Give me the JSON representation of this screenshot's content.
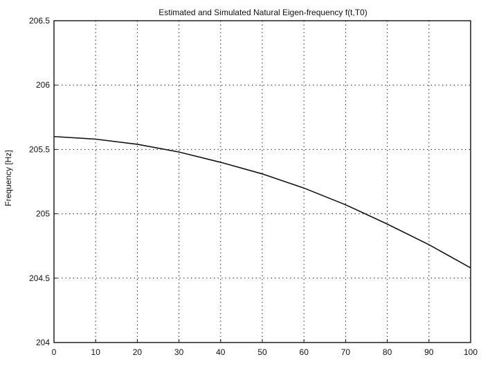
{
  "chart_data": {
    "type": "line",
    "title": "Estimated and Simulated Natural Eigen-frequency f(t,T0)",
    "xlabel": "",
    "ylabel": "Frequency [Hz]",
    "xlim": [
      0,
      100
    ],
    "ylim": [
      204,
      206.5
    ],
    "grid": true,
    "x_ticks": [
      0,
      10,
      20,
      30,
      40,
      50,
      60,
      70,
      80,
      90,
      100
    ],
    "y_ticks": [
      204,
      204.5,
      205,
      205.5,
      206,
      206.5
    ],
    "series": [
      {
        "x": [
          0,
          10,
          20,
          30,
          40,
          50,
          60,
          70,
          80,
          90,
          100
        ],
        "y": [
          205.6,
          205.58,
          205.54,
          205.48,
          205.4,
          205.31,
          205.2,
          205.07,
          204.92,
          204.76,
          204.58
        ]
      }
    ]
  }
}
